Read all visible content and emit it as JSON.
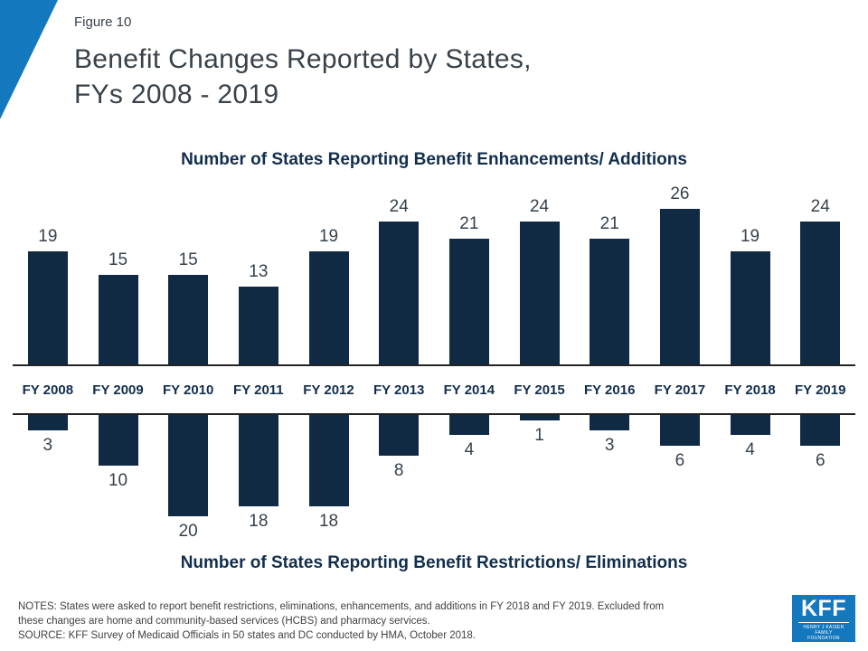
{
  "figure_label": "Figure 10",
  "title_line1": "Benefit Changes Reported by States,",
  "title_line2": "FYs 2008 - 2019",
  "chart_data": {
    "type": "bar",
    "categories": [
      "FY 2008",
      "FY 2009",
      "FY 2010",
      "FY 2011",
      "FY 2012",
      "FY 2013",
      "FY 2014",
      "FY 2015",
      "FY 2016",
      "FY 2017",
      "FY 2018",
      "FY 2019"
    ],
    "series": [
      {
        "name": "Number of States Reporting Benefit Enhancements/ Additions",
        "direction": "up",
        "values": [
          19,
          15,
          15,
          13,
          19,
          24,
          21,
          24,
          21,
          26,
          19,
          24
        ]
      },
      {
        "name": "Number of States Reporting Benefit Restrictions/ Eliminations",
        "direction": "down",
        "values": [
          3,
          10,
          20,
          18,
          18,
          8,
          4,
          1,
          3,
          6,
          4,
          6
        ]
      }
    ],
    "bar_color": "#112a43",
    "ylim_top": [
      0,
      26
    ],
    "ylim_bottom": [
      0,
      20
    ],
    "grid": false,
    "legend": "none",
    "data_labels": true
  },
  "notes": [
    "NOTES: States were asked to report benefit restrictions, eliminations, enhancements, and additions in FY 2018 and FY 2019. Excluded from",
    "these changes are home and community-based services (HCBS) and pharmacy services.",
    "SOURCE: KFF Survey of Medicaid Officials in 50 states and DC conducted by HMA, October 2018."
  ],
  "logo": {
    "text": "KFF",
    "sub_line1": "HENRY J KAISER",
    "sub_line2": "FAMILY FOUNDATION"
  },
  "colors": {
    "bar": "#112a43",
    "accent_blue": "#1378be",
    "title_text": "#39424a",
    "subtitle_text": "#122e4d",
    "axis_line": "#232323"
  }
}
